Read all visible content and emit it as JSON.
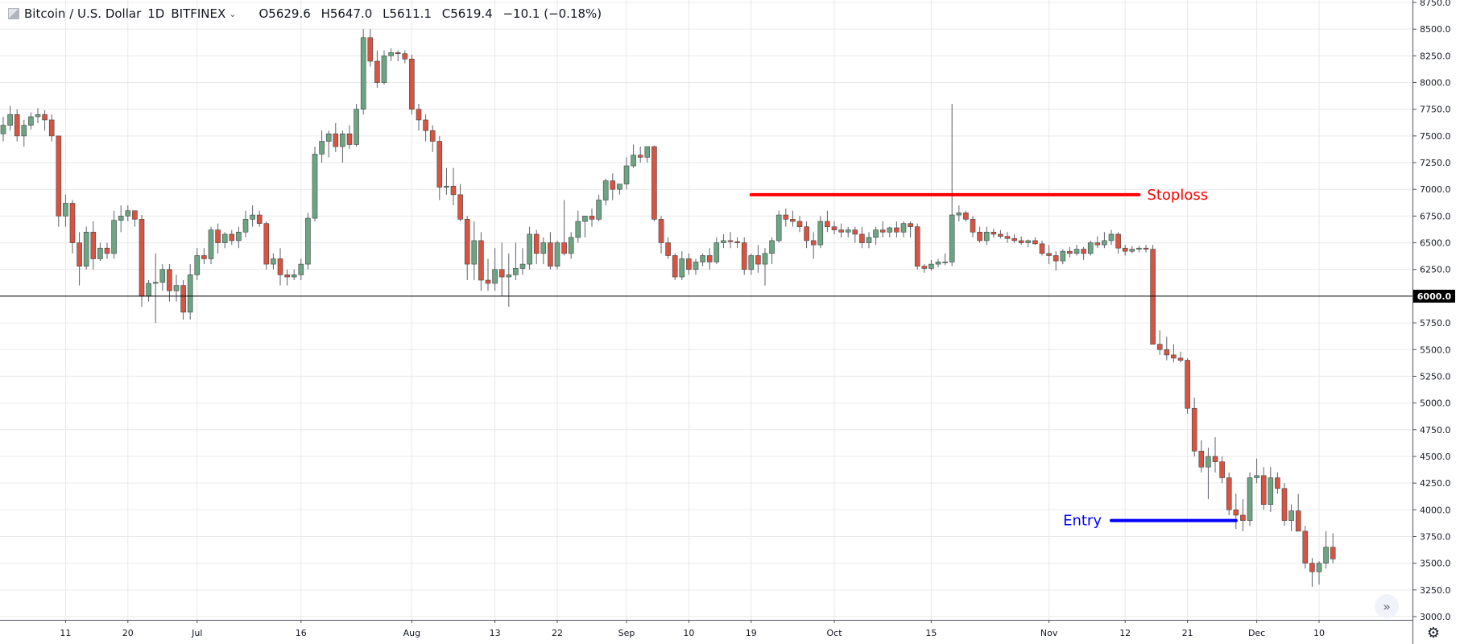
{
  "header": {
    "symbol": "Bitcoin / U.S. Dollar",
    "interval": "1D",
    "exchange": "BITFINEX",
    "open": "O5629.6",
    "high": "H5647.0",
    "low": "L5611.1",
    "close": "C5619.4",
    "change": "−10.1 (−0.18%)"
  },
  "colors": {
    "up": "#6ba583",
    "down": "#d75442",
    "wick": "#5d606b",
    "stoploss": "#ff0000",
    "entry": "#0000ff",
    "grid": "#e9e9ea",
    "price_line": "#000000"
  },
  "icons": {
    "scroll": "chevrons-right-icon",
    "settings": "gear-icon"
  },
  "chart_data": {
    "type": "candlestick",
    "ylim": [
      3000,
      8750
    ],
    "y_ticks": [
      3000,
      3250,
      3500,
      3750,
      4000,
      4250,
      4500,
      4750,
      5000,
      5250,
      5500,
      5750,
      6000,
      6250,
      6500,
      6750,
      7000,
      7250,
      7500,
      7750,
      8000,
      8250,
      8500,
      8750
    ],
    "y_tick_labels": [
      "3000.0",
      "3250.0",
      "3500.0",
      "3750.0",
      "4000.0",
      "4250.0",
      "4500.0",
      "4750.0",
      "5000.0",
      "5250.0",
      "5500.0",
      "5750.0",
      "6000.0",
      "6250.0",
      "6500.0",
      "6750.0",
      "7000.0",
      "7250.0",
      "7500.0",
      "7750.0",
      "8000.0",
      "8250.0",
      "8500.0",
      "8750.0"
    ],
    "x_ticks": [
      {
        "index": 9,
        "label": "11"
      },
      {
        "index": 18,
        "label": "20"
      },
      {
        "index": 28,
        "label": "Jul"
      },
      {
        "index": 43,
        "label": "16"
      },
      {
        "index": 59,
        "label": "Aug"
      },
      {
        "index": 71,
        "label": "13"
      },
      {
        "index": 80,
        "label": "22"
      },
      {
        "index": 90,
        "label": "Sep"
      },
      {
        "index": 99,
        "label": "10"
      },
      {
        "index": 108,
        "label": "19"
      },
      {
        "index": 120,
        "label": "Oct"
      },
      {
        "index": 134,
        "label": "15"
      },
      {
        "index": 151,
        "label": "Nov"
      },
      {
        "index": 162,
        "label": "12"
      },
      {
        "index": 171,
        "label": "21"
      },
      {
        "index": 181,
        "label": "Dec"
      },
      {
        "index": 190,
        "label": "10"
      }
    ],
    "candles": [
      [
        7520,
        7680,
        7450,
        7600
      ],
      [
        7600,
        7780,
        7550,
        7700
      ],
      [
        7700,
        7750,
        7450,
        7500
      ],
      [
        7500,
        7650,
        7400,
        7600
      ],
      [
        7600,
        7720,
        7560,
        7680
      ],
      [
        7680,
        7760,
        7620,
        7700
      ],
      [
        7700,
        7740,
        7550,
        7650
      ],
      [
        7650,
        7700,
        7450,
        7500
      ],
      [
        7500,
        7500,
        6650,
        6750
      ],
      [
        6750,
        6950,
        6650,
        6870
      ],
      [
        6870,
        6900,
        6400,
        6500
      ],
      [
        6500,
        6600,
        6100,
        6280
      ],
      [
        6280,
        6650,
        6250,
        6600
      ],
      [
        6600,
        6700,
        6250,
        6350
      ],
      [
        6350,
        6500,
        6330,
        6450
      ],
      [
        6450,
        6500,
        6350,
        6400
      ],
      [
        6400,
        6800,
        6350,
        6710
      ],
      [
        6710,
        6850,
        6600,
        6750
      ],
      [
        6750,
        6850,
        6700,
        6800
      ],
      [
        6800,
        6780,
        6650,
        6720
      ],
      [
        6720,
        6760,
        5900,
        6000
      ],
      [
        6000,
        6150,
        5950,
        6120
      ],
      [
        6120,
        6400,
        5750,
        6130
      ],
      [
        6130,
        6300,
        6050,
        6250
      ],
      [
        6250,
        6300,
        5950,
        6050
      ],
      [
        6050,
        6200,
        5950,
        6100
      ],
      [
        6100,
        6150,
        5780,
        5850
      ],
      [
        5850,
        6300,
        5780,
        6200
      ],
      [
        6200,
        6450,
        6150,
        6380
      ],
      [
        6380,
        6450,
        6300,
        6350
      ],
      [
        6350,
        6650,
        6300,
        6620
      ],
      [
        6620,
        6680,
        6400,
        6500
      ],
      [
        6500,
        6600,
        6450,
        6580
      ],
      [
        6580,
        6620,
        6480,
        6520
      ],
      [
        6520,
        6650,
        6450,
        6600
      ],
      [
        6600,
        6800,
        6550,
        6720
      ],
      [
        6720,
        6850,
        6650,
        6760
      ],
      [
        6760,
        6800,
        6650,
        6680
      ],
      [
        6680,
        6700,
        6250,
        6300
      ],
      [
        6300,
        6400,
        6250,
        6350
      ],
      [
        6350,
        6450,
        6100,
        6200
      ],
      [
        6200,
        6250,
        6100,
        6180
      ],
      [
        6180,
        6250,
        6150,
        6200
      ],
      [
        6200,
        6350,
        6150,
        6300
      ],
      [
        6300,
        6780,
        6250,
        6730
      ],
      [
        6730,
        7400,
        6700,
        7330
      ],
      [
        7330,
        7550,
        7250,
        7450
      ],
      [
        7450,
        7550,
        7300,
        7520
      ],
      [
        7520,
        7620,
        7350,
        7400
      ],
      [
        7400,
        7550,
        7250,
        7520
      ],
      [
        7520,
        7600,
        7380,
        7420
      ],
      [
        7420,
        7800,
        7400,
        7750
      ],
      [
        7750,
        8500,
        7700,
        8420
      ],
      [
        8420,
        8500,
        8150,
        8200
      ],
      [
        8200,
        8300,
        7950,
        8000
      ],
      [
        8000,
        8300,
        7980,
        8250
      ],
      [
        8250,
        8320,
        8200,
        8280
      ],
      [
        8280,
        8300,
        8200,
        8270
      ],
      [
        8270,
        8300,
        8180,
        8220
      ],
      [
        8220,
        8260,
        7700,
        7750
      ],
      [
        7750,
        7800,
        7550,
        7650
      ],
      [
        7650,
        7700,
        7450,
        7550
      ],
      [
        7550,
        7600,
        7350,
        7450
      ],
      [
        7450,
        7500,
        6900,
        7020
      ],
      [
        7020,
        7200,
        6950,
        7030
      ],
      [
        7030,
        7200,
        6850,
        6950
      ],
      [
        6950,
        7050,
        6700,
        6720
      ],
      [
        6720,
        6750,
        6150,
        6300
      ],
      [
        6300,
        6700,
        6150,
        6520
      ],
      [
        6520,
        6600,
        6050,
        6150
      ],
      [
        6150,
        6350,
        6050,
        6120
      ],
      [
        6120,
        6450,
        6050,
        6250
      ],
      [
        6250,
        6500,
        6000,
        6180
      ],
      [
        6180,
        6400,
        5900,
        6200
      ],
      [
        6200,
        6500,
        6150,
        6260
      ],
      [
        6260,
        6450,
        6200,
        6300
      ],
      [
        6300,
        6650,
        6250,
        6580
      ],
      [
        6580,
        6620,
        6300,
        6400
      ],
      [
        6400,
        6550,
        6300,
        6500
      ],
      [
        6500,
        6600,
        6250,
        6280
      ],
      [
        6280,
        6520,
        6250,
        6500
      ],
      [
        6500,
        6900,
        6380,
        6400
      ],
      [
        6400,
        6600,
        6350,
        6550
      ],
      [
        6550,
        6800,
        6500,
        6700
      ],
      [
        6700,
        6750,
        6550,
        6750
      ],
      [
        6750,
        6820,
        6650,
        6720
      ],
      [
        6720,
        6950,
        6700,
        6900
      ],
      [
        6900,
        7100,
        6850,
        7080
      ],
      [
        7080,
        7150,
        6900,
        7000
      ],
      [
        7000,
        7050,
        6950,
        7050
      ],
      [
        7050,
        7300,
        7000,
        7220
      ],
      [
        7220,
        7420,
        7200,
        7320
      ],
      [
        7320,
        7400,
        7250,
        7300
      ],
      [
        7300,
        7400,
        7250,
        7400
      ],
      [
        7400,
        7410,
        6700,
        6720
      ],
      [
        6720,
        6750,
        6400,
        6500
      ],
      [
        6500,
        6550,
        6350,
        6380
      ],
      [
        6380,
        6400,
        6150,
        6180
      ],
      [
        6180,
        6420,
        6150,
        6350
      ],
      [
        6350,
        6400,
        6200,
        6250
      ],
      [
        6250,
        6350,
        6200,
        6320
      ],
      [
        6320,
        6400,
        6280,
        6380
      ],
      [
        6380,
        6450,
        6250,
        6320
      ],
      [
        6320,
        6550,
        6300,
        6500
      ],
      [
        6500,
        6580,
        6450,
        6520
      ],
      [
        6520,
        6600,
        6450,
        6510
      ],
      [
        6510,
        6550,
        6450,
        6500
      ],
      [
        6500,
        6550,
        6200,
        6250
      ],
      [
        6250,
        6400,
        6200,
        6380
      ],
      [
        6380,
        6480,
        6220,
        6300
      ],
      [
        6300,
        6450,
        6100,
        6400
      ],
      [
        6400,
        6550,
        6300,
        6520
      ],
      [
        6520,
        6800,
        6500,
        6760
      ],
      [
        6760,
        6820,
        6650,
        6720
      ],
      [
        6720,
        6800,
        6650,
        6700
      ],
      [
        6700,
        6750,
        6600,
        6650
      ],
      [
        6650,
        6700,
        6450,
        6520
      ],
      [
        6520,
        6600,
        6350,
        6480
      ],
      [
        6480,
        6750,
        6450,
        6700
      ],
      [
        6700,
        6800,
        6600,
        6650
      ],
      [
        6650,
        6700,
        6580,
        6620
      ],
      [
        6620,
        6680,
        6550,
        6600
      ],
      [
        6600,
        6650,
        6550,
        6620
      ],
      [
        6620,
        6650,
        6500,
        6580
      ],
      [
        6580,
        6650,
        6450,
        6500
      ],
      [
        6500,
        6600,
        6450,
        6550
      ],
      [
        6550,
        6650,
        6480,
        6620
      ],
      [
        6620,
        6700,
        6550,
        6600
      ],
      [
        6600,
        6650,
        6550,
        6640
      ],
      [
        6640,
        6700,
        6550,
        6600
      ],
      [
        6600,
        6700,
        6550,
        6680
      ],
      [
        6680,
        6700,
        6550,
        6650
      ],
      [
        6650,
        6680,
        6250,
        6280
      ],
      [
        6280,
        6300,
        6220,
        6260
      ],
      [
        6260,
        6340,
        6240,
        6300
      ],
      [
        6300,
        6350,
        6270,
        6320
      ],
      [
        6320,
        6400,
        6290,
        6320
      ],
      [
        6320,
        7800,
        6280,
        6760
      ],
      [
        6760,
        6850,
        6700,
        6780
      ],
      [
        6780,
        6800,
        6700,
        6720
      ],
      [
        6720,
        6750,
        6550,
        6600
      ],
      [
        6600,
        6650,
        6500,
        6520
      ],
      [
        6520,
        6650,
        6480,
        6600
      ],
      [
        6600,
        6630,
        6550,
        6580
      ],
      [
        6580,
        6620,
        6540,
        6560
      ],
      [
        6560,
        6600,
        6500,
        6540
      ],
      [
        6540,
        6580,
        6500,
        6520
      ],
      [
        6520,
        6560,
        6480,
        6500
      ],
      [
        6500,
        6530,
        6460,
        6520
      ],
      [
        6520,
        6550,
        6480,
        6490
      ],
      [
        6490,
        6520,
        6380,
        6400
      ],
      [
        6400,
        6480,
        6300,
        6380
      ],
      [
        6380,
        6420,
        6240,
        6330
      ],
      [
        6330,
        6440,
        6300,
        6420
      ],
      [
        6420,
        6460,
        6360,
        6400
      ],
      [
        6400,
        6480,
        6380,
        6440
      ],
      [
        6440,
        6460,
        6340,
        6400
      ],
      [
        6400,
        6520,
        6380,
        6500
      ],
      [
        6500,
        6560,
        6450,
        6480
      ],
      [
        6480,
        6600,
        6450,
        6520
      ],
      [
        6520,
        6620,
        6480,
        6580
      ],
      [
        6580,
        6600,
        6400,
        6450
      ],
      [
        6450,
        6480,
        6380,
        6420
      ],
      [
        6420,
        6470,
        6400,
        6440
      ],
      [
        6440,
        6470,
        6410,
        6450
      ],
      [
        6450,
        6480,
        6410,
        6440
      ],
      [
        6440,
        6480,
        5550,
        5550
      ],
      [
        5550,
        5680,
        5450,
        5500
      ],
      [
        5500,
        5620,
        5400,
        5450
      ],
      [
        5450,
        5550,
        5380,
        5420
      ],
      [
        5420,
        5480,
        5380,
        5400
      ],
      [
        5400,
        5420,
        4900,
        4950
      ],
      [
        4950,
        5050,
        4500,
        4550
      ],
      [
        4550,
        4650,
        4350,
        4400
      ],
      [
        4400,
        4580,
        4100,
        4500
      ],
      [
        4500,
        4680,
        4350,
        4450
      ],
      [
        4450,
        4500,
        4250,
        4300
      ],
      [
        4300,
        4350,
        3950,
        4000
      ],
      [
        4000,
        4150,
        3820,
        3950
      ],
      [
        3950,
        4100,
        3800,
        3900
      ],
      [
        3900,
        4350,
        3850,
        4300
      ],
      [
        4300,
        4480,
        4250,
        4320
      ],
      [
        4320,
        4400,
        4000,
        4050
      ],
      [
        4050,
        4400,
        3980,
        4300
      ],
      [
        4300,
        4350,
        4150,
        4200
      ],
      [
        4200,
        4250,
        3850,
        3900
      ],
      [
        3900,
        4050,
        3800,
        3990
      ],
      [
        3990,
        4150,
        3800,
        3800
      ],
      [
        3800,
        3850,
        3450,
        3500
      ],
      [
        3500,
        3550,
        3280,
        3420
      ],
      [
        3420,
        3520,
        3300,
        3500
      ],
      [
        3500,
        3800,
        3450,
        3650
      ],
      [
        3650,
        3780,
        3500,
        3540
      ]
    ],
    "annotations": [
      {
        "label": "Stoploss",
        "y": 6950,
        "x_start": 108,
        "x_end": 164
      },
      {
        "label": "Entry",
        "y": 3900,
        "x_start": 160,
        "x_end": 178
      }
    ],
    "horizontal_line": {
      "y": 6000,
      "label": "6000.0"
    },
    "grid": true
  }
}
